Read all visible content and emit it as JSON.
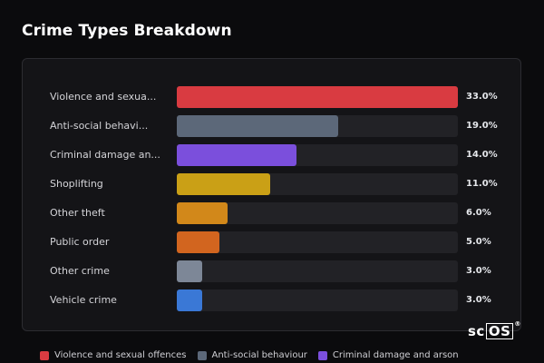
{
  "page": {
    "title": "Crime Types Breakdown"
  },
  "chart_data": {
    "type": "bar",
    "orientation": "horizontal",
    "categories": [
      "Violence and sexua...",
      "Anti-social behavi...",
      "Criminal damage an...",
      "Shoplifting",
      "Other theft",
      "Public order",
      "Other crime",
      "Vehicle crime"
    ],
    "values": [
      33.0,
      19.0,
      14.0,
      11.0,
      6.0,
      5.0,
      3.0,
      3.0
    ],
    "value_labels": [
      "33.0%",
      "19.0%",
      "14.0%",
      "11.0%",
      "6.0%",
      "5.0%",
      "3.0%",
      "3.0%"
    ],
    "colors": [
      "#d93b41",
      "#5c6879",
      "#7b4fdc",
      "#caa016",
      "#d2881a",
      "#d2651f",
      "#7d8797",
      "#3a78d6"
    ],
    "xlim": [
      0,
      33
    ],
    "title": "Crime Types Breakdown"
  },
  "legend": {
    "items": [
      {
        "label": "Violence and sexual offences",
        "color": "#d93b41"
      },
      {
        "label": "Anti-social behaviour",
        "color": "#5c6879"
      },
      {
        "label": "Criminal damage and arson",
        "color": "#7b4fdc"
      }
    ]
  },
  "logo": {
    "text_left": "sc",
    "text_box": "OS",
    "mark": "®"
  }
}
